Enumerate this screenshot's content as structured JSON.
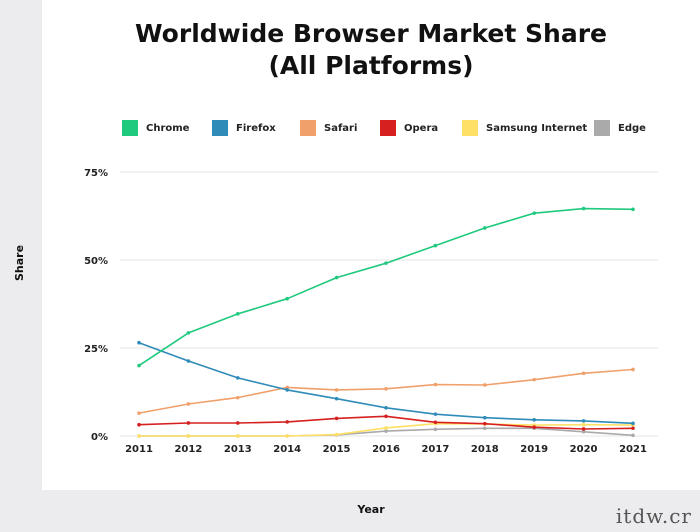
{
  "chart_data": {
    "type": "line",
    "title_line1": "Worldwide Browser Market Share",
    "title_line2": "(All Platforms)",
    "xlabel": "Year",
    "ylabel": "Share",
    "x": [
      "2011",
      "2012",
      "2013",
      "2014",
      "2015",
      "2016",
      "2017",
      "2018",
      "2019",
      "2020",
      "2021"
    ],
    "ylim": [
      0,
      75
    ],
    "yticks": [
      "0%",
      "25%",
      "50%",
      "75%"
    ],
    "ytick_values": [
      0,
      25,
      50,
      75
    ],
    "grid": true,
    "legend_position": "top",
    "series": [
      {
        "name": "Chrome",
        "color": "#1fc97e",
        "values": [
          20,
          29.3,
          34.7,
          39,
          45,
          49.1,
          54.1,
          59.1,
          63.3,
          64.6,
          64.4
        ]
      },
      {
        "name": "Firefox",
        "color": "#2f8bb8",
        "values": [
          26.5,
          21.3,
          16.5,
          13.1,
          10.6,
          8,
          6.2,
          5.2,
          4.6,
          4.3,
          3.6
        ]
      },
      {
        "name": "Safari",
        "color": "#f0a06a",
        "values": [
          6.5,
          9.1,
          10.9,
          13.8,
          13.1,
          13.4,
          14.6,
          14.5,
          16,
          17.8,
          18.9
        ]
      },
      {
        "name": "Opera",
        "color": "#d62020",
        "values": [
          3.2,
          3.7,
          3.7,
          4,
          5,
          5.6,
          3.9,
          3.5,
          2.5,
          2,
          2.2
        ]
      },
      {
        "name": "Samsung Internet",
        "color": "#ffe066",
        "values": [
          0,
          0,
          0,
          0,
          0.4,
          2.3,
          3.5,
          3.4,
          3.1,
          3.2,
          3.1
        ]
      },
      {
        "name": "Edge",
        "color": "#aaaaaa",
        "values": [
          0,
          0,
          0,
          0,
          0.3,
          1.4,
          1.9,
          2.2,
          2.2,
          1.2,
          0.2
        ]
      }
    ]
  },
  "watermark": "itdw.cr"
}
